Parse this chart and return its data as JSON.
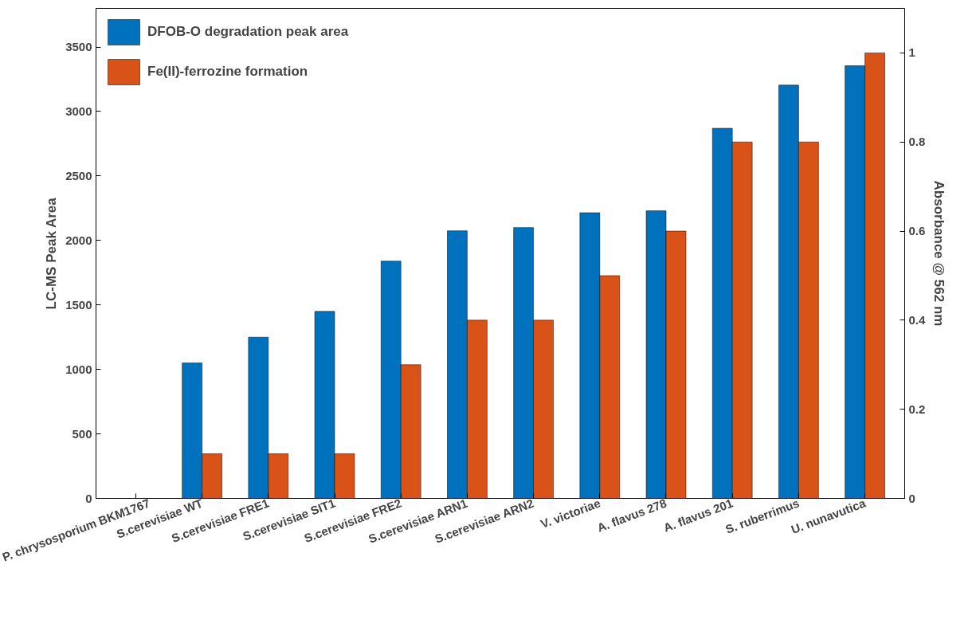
{
  "chart_data": {
    "type": "bar",
    "ylabel": "LC-MS Peak Area",
    "y2label": "Absorbance @ 562 nm",
    "categories": [
      "P. chrysosporium BKM1767",
      "S.cerevisiae WT",
      "S.cerevisiae FRE1",
      "S.cerevisiae SIT1",
      "S.cerevisiae FRE2",
      "S.cerevisiae ARN1",
      "S.cerevisiae ARN2",
      "V. victoriae",
      "A. flavus 278",
      "A. flavus 201",
      "S. ruberrimus",
      "U. nunavutica"
    ],
    "series": [
      {
        "name": "DFOB-O degradation peak area",
        "color": "#0072bd",
        "values": [
          null,
          1050,
          1250,
          1450,
          1840,
          2075,
          2100,
          2215,
          2230,
          2870,
          3205,
          3355
        ]
      },
      {
        "name": "Fe(II)-ferrozine formation",
        "color": "#d95319",
        "axis": "y2",
        "values": [
          null,
          0.1,
          0.1,
          0.1,
          0.3,
          0.4,
          0.4,
          0.5,
          0.6,
          0.8,
          0.8,
          1.0
        ]
      }
    ],
    "ylim": [
      0,
      3800
    ],
    "yticks": [
      0,
      500,
      1000,
      1500,
      2000,
      2500,
      3000,
      3500
    ],
    "y2lim": [
      0,
      1.1
    ],
    "y2ticks": [
      0,
      0.2,
      0.4,
      0.6,
      0.8,
      1
    ],
    "legend": "top left",
    "grid": false
  }
}
